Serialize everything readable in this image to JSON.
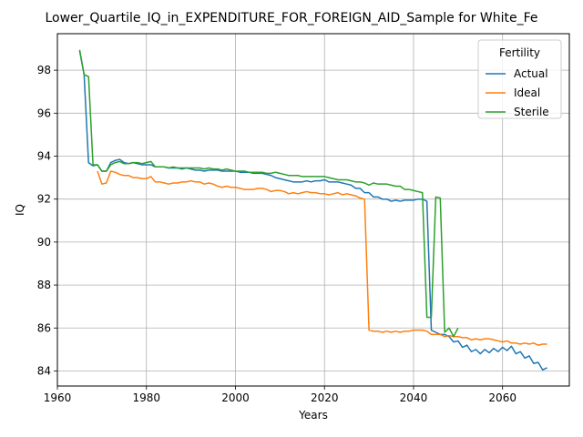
{
  "chart_data": {
    "type": "line",
    "title": "Lower_Quartile_IQ_in_EXPENDITURE_FOR_FOREIGN_AID_Sample for White_Fe",
    "xlabel": "Years",
    "ylabel": "IQ",
    "xlim": [
      1960,
      2075
    ],
    "ylim": [
      83.3,
      99.7
    ],
    "xticks": [
      1960,
      1980,
      2000,
      2020,
      2040,
      2060
    ],
    "yticks": [
      84,
      86,
      88,
      90,
      92,
      94,
      96,
      98
    ],
    "grid": true,
    "legend": {
      "title": "Fertility",
      "placement": "top-right"
    },
    "series": [
      {
        "name": "Actual",
        "color": "#1f77b4",
        "points": [
          [
            1965,
            98.9
          ],
          [
            1966,
            97.8
          ],
          [
            1967,
            93.7
          ],
          [
            1968,
            93.55
          ],
          [
            1969,
            93.6
          ],
          [
            1970,
            93.3
          ],
          [
            1971,
            93.3
          ],
          [
            1972,
            93.7
          ],
          [
            1973,
            93.8
          ],
          [
            1974,
            93.85
          ],
          [
            1975,
            93.7
          ],
          [
            1976,
            93.65
          ],
          [
            1977,
            93.7
          ],
          [
            1978,
            93.65
          ],
          [
            1979,
            93.6
          ],
          [
            1980,
            93.6
          ],
          [
            1981,
            93.6
          ],
          [
            1982,
            93.5
          ],
          [
            1983,
            93.5
          ],
          [
            1984,
            93.5
          ],
          [
            1985,
            93.45
          ],
          [
            1986,
            93.45
          ],
          [
            1987,
            93.45
          ],
          [
            1988,
            93.4
          ],
          [
            1989,
            93.45
          ],
          [
            1990,
            93.4
          ],
          [
            1991,
            93.35
          ],
          [
            1992,
            93.35
          ],
          [
            1993,
            93.3
          ],
          [
            1994,
            93.35
          ],
          [
            1995,
            93.35
          ],
          [
            1996,
            93.35
          ],
          [
            1997,
            93.3
          ],
          [
            1998,
            93.3
          ],
          [
            1999,
            93.3
          ],
          [
            2000,
            93.3
          ],
          [
            2001,
            93.25
          ],
          [
            2002,
            93.25
          ],
          [
            2003,
            93.25
          ],
          [
            2004,
            93.2
          ],
          [
            2005,
            93.2
          ],
          [
            2006,
            93.2
          ],
          [
            2007,
            93.15
          ],
          [
            2008,
            93.1
          ],
          [
            2009,
            93.0
          ],
          [
            2010,
            92.95
          ],
          [
            2011,
            92.9
          ],
          [
            2012,
            92.85
          ],
          [
            2013,
            92.8
          ],
          [
            2014,
            92.8
          ],
          [
            2015,
            92.8
          ],
          [
            2016,
            92.85
          ],
          [
            2017,
            92.8
          ],
          [
            2018,
            92.85
          ],
          [
            2019,
            92.85
          ],
          [
            2020,
            92.9
          ],
          [
            2021,
            92.8
          ],
          [
            2022,
            92.8
          ],
          [
            2023,
            92.8
          ],
          [
            2024,
            92.75
          ],
          [
            2025,
            92.7
          ],
          [
            2026,
            92.65
          ],
          [
            2027,
            92.5
          ],
          [
            2028,
            92.5
          ],
          [
            2029,
            92.3
          ],
          [
            2030,
            92.3
          ],
          [
            2031,
            92.1
          ],
          [
            2032,
            92.1
          ],
          [
            2033,
            92.0
          ],
          [
            2034,
            92.0
          ],
          [
            2035,
            91.9
          ],
          [
            2036,
            91.95
          ],
          [
            2037,
            91.9
          ],
          [
            2038,
            91.95
          ],
          [
            2039,
            91.95
          ],
          [
            2040,
            91.95
          ],
          [
            2041,
            92.0
          ],
          [
            2042,
            92.0
          ],
          [
            2043,
            91.9
          ],
          [
            2044,
            85.9
          ],
          [
            2045,
            85.8
          ],
          [
            2046,
            85.7
          ],
          [
            2047,
            85.7
          ],
          [
            2048,
            85.6
          ],
          [
            2049,
            85.35
          ],
          [
            2050,
            85.4
          ],
          [
            2051,
            85.1
          ],
          [
            2052,
            85.2
          ],
          [
            2053,
            84.9
          ],
          [
            2054,
            85.0
          ],
          [
            2055,
            84.8
          ],
          [
            2056,
            85.0
          ],
          [
            2057,
            84.85
          ],
          [
            2058,
            85.05
          ],
          [
            2059,
            84.9
          ],
          [
            2060,
            85.1
          ],
          [
            2061,
            84.95
          ],
          [
            2062,
            85.15
          ],
          [
            2063,
            84.8
          ],
          [
            2064,
            84.9
          ],
          [
            2065,
            84.6
          ],
          [
            2066,
            84.7
          ],
          [
            2067,
            84.35
          ],
          [
            2068,
            84.4
          ],
          [
            2069,
            84.05
          ],
          [
            2070,
            84.15
          ]
        ]
      },
      {
        "name": "Ideal",
        "color": "#ff7f0e",
        "points": [
          [
            1969,
            93.3
          ],
          [
            1970,
            92.7
          ],
          [
            1971,
            92.75
          ],
          [
            1972,
            93.3
          ],
          [
            1973,
            93.25
          ],
          [
            1974,
            93.15
          ],
          [
            1975,
            93.1
          ],
          [
            1976,
            93.1
          ],
          [
            1977,
            93.0
          ],
          [
            1978,
            93.0
          ],
          [
            1979,
            92.95
          ],
          [
            1980,
            92.95
          ],
          [
            1981,
            93.05
          ],
          [
            1982,
            92.8
          ],
          [
            1983,
            92.8
          ],
          [
            1984,
            92.75
          ],
          [
            1985,
            92.7
          ],
          [
            1986,
            92.75
          ],
          [
            1987,
            92.75
          ],
          [
            1988,
            92.8
          ],
          [
            1989,
            92.8
          ],
          [
            1990,
            92.85
          ],
          [
            1991,
            92.8
          ],
          [
            1992,
            92.8
          ],
          [
            1993,
            92.7
          ],
          [
            1994,
            92.75
          ],
          [
            1995,
            92.7
          ],
          [
            1996,
            92.6
          ],
          [
            1997,
            92.55
          ],
          [
            1998,
            92.6
          ],
          [
            1999,
            92.55
          ],
          [
            2000,
            92.55
          ],
          [
            2001,
            92.5
          ],
          [
            2002,
            92.45
          ],
          [
            2003,
            92.45
          ],
          [
            2004,
            92.45
          ],
          [
            2005,
            92.5
          ],
          [
            2006,
            92.5
          ],
          [
            2007,
            92.45
          ],
          [
            2008,
            92.35
          ],
          [
            2009,
            92.4
          ],
          [
            2010,
            92.4
          ],
          [
            2011,
            92.35
          ],
          [
            2012,
            92.25
          ],
          [
            2013,
            92.3
          ],
          [
            2014,
            92.25
          ],
          [
            2015,
            92.3
          ],
          [
            2016,
            92.35
          ],
          [
            2017,
            92.3
          ],
          [
            2018,
            92.3
          ],
          [
            2019,
            92.25
          ],
          [
            2020,
            92.25
          ],
          [
            2021,
            92.2
          ],
          [
            2022,
            92.25
          ],
          [
            2023,
            92.3
          ],
          [
            2024,
            92.2
          ],
          [
            2025,
            92.25
          ],
          [
            2026,
            92.2
          ],
          [
            2027,
            92.15
          ],
          [
            2028,
            92.05
          ],
          [
            2029,
            92.0
          ],
          [
            2030,
            85.9
          ],
          [
            2031,
            85.85
          ],
          [
            2032,
            85.85
          ],
          [
            2033,
            85.8
          ],
          [
            2034,
            85.85
          ],
          [
            2035,
            85.8
          ],
          [
            2036,
            85.85
          ],
          [
            2037,
            85.8
          ],
          [
            2038,
            85.85
          ],
          [
            2039,
            85.85
          ],
          [
            2040,
            85.9
          ],
          [
            2041,
            85.9
          ],
          [
            2042,
            85.9
          ],
          [
            2043,
            85.85
          ],
          [
            2044,
            85.7
          ],
          [
            2045,
            85.7
          ],
          [
            2046,
            85.7
          ],
          [
            2047,
            85.6
          ],
          [
            2048,
            85.65
          ],
          [
            2049,
            85.6
          ],
          [
            2050,
            85.6
          ],
          [
            2051,
            85.55
          ],
          [
            2052,
            85.55
          ],
          [
            2053,
            85.45
          ],
          [
            2054,
            85.5
          ],
          [
            2055,
            85.45
          ],
          [
            2056,
            85.5
          ],
          [
            2057,
            85.5
          ],
          [
            2058,
            85.45
          ],
          [
            2059,
            85.4
          ],
          [
            2060,
            85.35
          ],
          [
            2061,
            85.4
          ],
          [
            2062,
            85.3
          ],
          [
            2063,
            85.3
          ],
          [
            2064,
            85.25
          ],
          [
            2065,
            85.3
          ],
          [
            2066,
            85.25
          ],
          [
            2067,
            85.3
          ],
          [
            2068,
            85.2
          ],
          [
            2069,
            85.25
          ],
          [
            2070,
            85.25
          ]
        ]
      },
      {
        "name": "Sterile",
        "color": "#2ca02c",
        "points": [
          [
            1965,
            98.95
          ],
          [
            1966,
            97.8
          ],
          [
            1967,
            97.7
          ],
          [
            1968,
            93.6
          ],
          [
            1969,
            93.6
          ],
          [
            1970,
            93.3
          ],
          [
            1971,
            93.3
          ],
          [
            1972,
            93.6
          ],
          [
            1973,
            93.7
          ],
          [
            1974,
            93.75
          ],
          [
            1975,
            93.65
          ],
          [
            1976,
            93.65
          ],
          [
            1977,
            93.7
          ],
          [
            1978,
            93.7
          ],
          [
            1979,
            93.65
          ],
          [
            1980,
            93.7
          ],
          [
            1981,
            93.75
          ],
          [
            1982,
            93.5
          ],
          [
            1983,
            93.5
          ],
          [
            1984,
            93.5
          ],
          [
            1985,
            93.45
          ],
          [
            1986,
            93.5
          ],
          [
            1987,
            93.45
          ],
          [
            1988,
            93.45
          ],
          [
            1989,
            93.45
          ],
          [
            1990,
            93.45
          ],
          [
            1991,
            93.45
          ],
          [
            1992,
            93.45
          ],
          [
            1993,
            93.4
          ],
          [
            1994,
            93.45
          ],
          [
            1995,
            93.4
          ],
          [
            1996,
            93.4
          ],
          [
            1997,
            93.35
          ],
          [
            1998,
            93.4
          ],
          [
            1999,
            93.35
          ],
          [
            2000,
            93.3
          ],
          [
            2001,
            93.3
          ],
          [
            2002,
            93.3
          ],
          [
            2003,
            93.25
          ],
          [
            2004,
            93.25
          ],
          [
            2005,
            93.25
          ],
          [
            2006,
            93.25
          ],
          [
            2007,
            93.2
          ],
          [
            2008,
            93.2
          ],
          [
            2009,
            93.25
          ],
          [
            2010,
            93.2
          ],
          [
            2011,
            93.15
          ],
          [
            2012,
            93.1
          ],
          [
            2013,
            93.1
          ],
          [
            2014,
            93.1
          ],
          [
            2015,
            93.05
          ],
          [
            2016,
            93.05
          ],
          [
            2017,
            93.05
          ],
          [
            2018,
            93.05
          ],
          [
            2019,
            93.05
          ],
          [
            2020,
            93.05
          ],
          [
            2021,
            93.0
          ],
          [
            2022,
            92.95
          ],
          [
            2023,
            92.9
          ],
          [
            2024,
            92.9
          ],
          [
            2025,
            92.9
          ],
          [
            2026,
            92.85
          ],
          [
            2027,
            92.8
          ],
          [
            2028,
            92.8
          ],
          [
            2029,
            92.75
          ],
          [
            2030,
            92.65
          ],
          [
            2031,
            92.75
          ],
          [
            2032,
            92.7
          ],
          [
            2033,
            92.7
          ],
          [
            2034,
            92.7
          ],
          [
            2035,
            92.65
          ],
          [
            2036,
            92.6
          ],
          [
            2037,
            92.6
          ],
          [
            2038,
            92.45
          ],
          [
            2039,
            92.45
          ],
          [
            2040,
            92.4
          ],
          [
            2041,
            92.35
          ],
          [
            2042,
            92.3
          ],
          [
            2043,
            86.5
          ],
          [
            2044,
            86.5
          ],
          [
            2045,
            92.1
          ],
          [
            2046,
            92.05
          ],
          [
            2047,
            85.8
          ],
          [
            2048,
            86.0
          ],
          [
            2049,
            85.6
          ],
          [
            2050,
            86.0
          ]
        ]
      }
    ]
  }
}
